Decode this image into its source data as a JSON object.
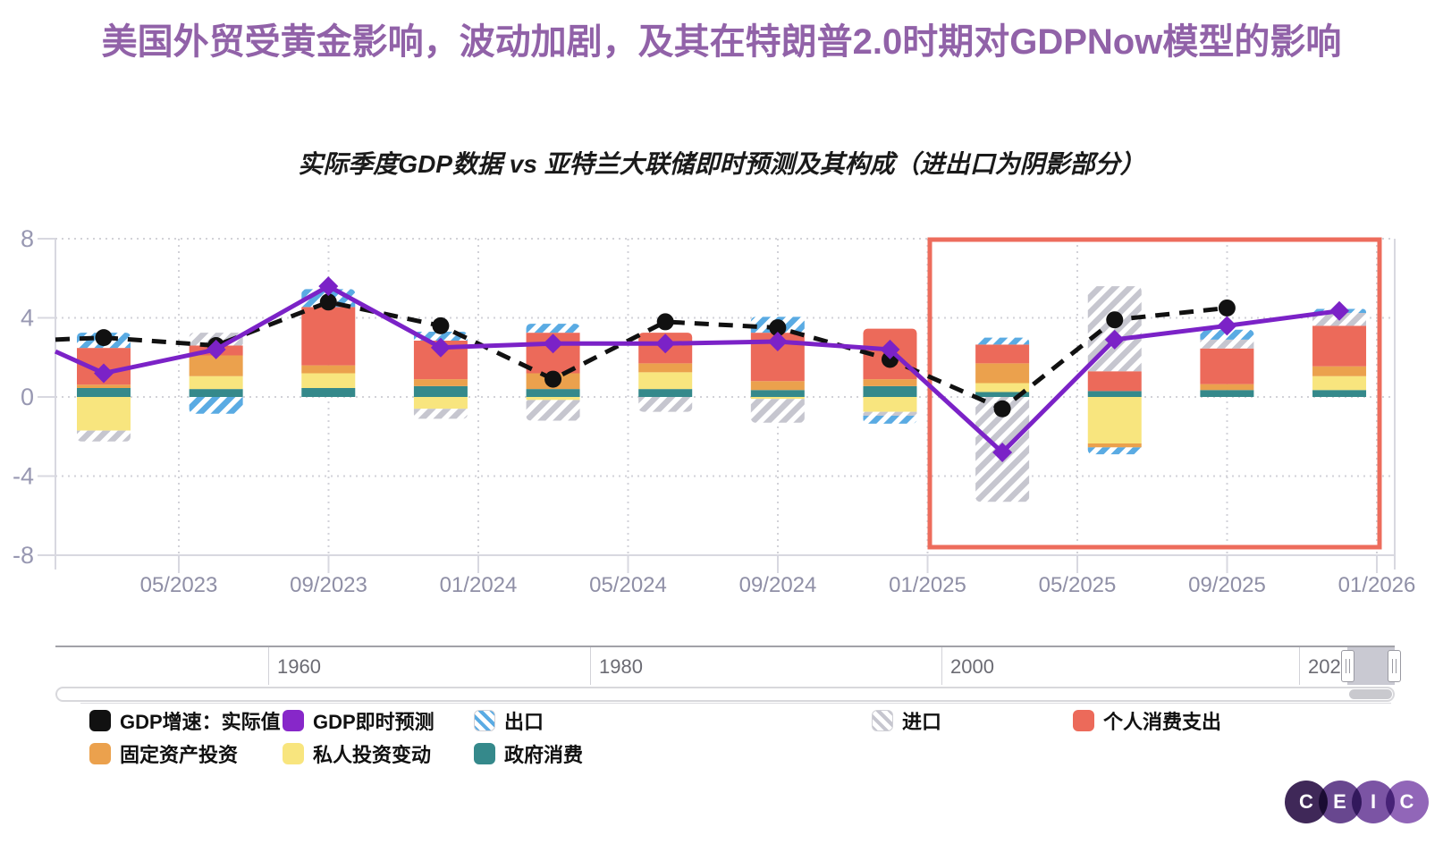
{
  "title": "美国外贸受黄金影响，波动加剧，及其在特朗普2.0时期对GDPNow模型的影响",
  "subtitle": "实际季度GDP数据 vs 亚特兰大联储即时预测及其构成（进出口为阴影部分）",
  "chart_data": {
    "type": "combo: stacked-bar + line",
    "y_axis": {
      "min": -8,
      "max": 8,
      "ticks": [
        8,
        4,
        0,
        -4,
        -8
      ],
      "grid": "dotted"
    },
    "x_ticks": [
      "05/2023",
      "09/2023",
      "01/2024",
      "05/2024",
      "09/2024",
      "01/2025",
      "05/2025",
      "09/2025",
      "01/2026"
    ],
    "quarters": [
      "03/2023",
      "06/2023",
      "09/2023",
      "12/2023",
      "03/2024",
      "06/2024",
      "09/2024",
      "12/2024",
      "03/2025",
      "06/2025",
      "09/2025",
      "12/2025"
    ],
    "series": [
      {
        "key": "actual-gdp",
        "name": "GDP增速：实际值",
        "kind": "dashed-line",
        "marker": "dot",
        "color": "#111111",
        "left_edge_value": 2.9,
        "values": [
          3.0,
          2.6,
          4.8,
          3.6,
          0.9,
          3.8,
          3.5,
          1.9,
          -0.6,
          3.9,
          4.5,
          null
        ]
      },
      {
        "key": "gdp-nowcast",
        "name": "GDP即时预测",
        "kind": "line",
        "marker": "diamond",
        "color": "#7B22C7",
        "left_edge_value": 2.3,
        "values": [
          1.2,
          2.4,
          5.6,
          2.5,
          2.7,
          2.7,
          2.8,
          2.4,
          -2.8,
          2.9,
          3.6,
          4.35
        ]
      }
    ],
    "components": [
      {
        "key": "government-consumption",
        "name": "政府消费",
        "color": "#35898B",
        "values": [
          0.45,
          0.4,
          0.45,
          0.55,
          0.4,
          0.4,
          0.35,
          0.55,
          0.25,
          0.3,
          0.35,
          0.35
        ]
      },
      {
        "key": "private-inventory-change",
        "name": "私人投资变动",
        "color": "#F8E57E",
        "values": [
          -1.7,
          0.65,
          0.75,
          -0.6,
          -0.15,
          0.85,
          -0.1,
          -0.75,
          0.45,
          -2.35,
          0,
          0.7
        ]
      },
      {
        "key": "fixed-investment",
        "name": "固定资产投资",
        "color": "#EBA14D",
        "values": [
          0.17,
          1.05,
          0.4,
          0.35,
          0.8,
          0.45,
          0.45,
          0.35,
          1.0,
          -0.2,
          0.3,
          0.5
        ]
      },
      {
        "key": "personal-consumption",
        "name": "个人消费支出",
        "color": "#EC6A5A",
        "values": [
          1.86,
          0.5,
          2.95,
          1.95,
          2.05,
          1.55,
          2.45,
          2.55,
          0.95,
          1.0,
          1.8,
          2.05
        ]
      },
      {
        "key": "imports",
        "name": "进口",
        "pattern": "hatch",
        "color": "#C6C6CF",
        "values": [
          -0.55,
          0.65,
          0,
          -0.5,
          -1.05,
          -0.75,
          -1.2,
          -0.2,
          -5.3,
          4.3,
          0.45,
          0.65
        ]
      },
      {
        "key": "exports",
        "name": "出口",
        "pattern": "hatch",
        "color": "#5AABE3",
        "values": [
          0.77,
          -0.85,
          0.9,
          0.45,
          0.45,
          0,
          0.8,
          -0.4,
          0.35,
          -0.35,
          0.5,
          0.2
        ]
      }
    ],
    "highlight_box": {
      "color": "#ED6C5C",
      "from": "01/2025 区域",
      "to": "01/2026"
    }
  },
  "navigator": {
    "decade_labels": [
      "1960",
      "1980",
      "2000",
      "2020"
    ],
    "selection": "2020s (right end)"
  },
  "legend": {
    "rows": [
      {
        "items": [
          {
            "label": "GDP增速：实际值",
            "swatch": "#111111"
          },
          {
            "label": "GDP即时预测",
            "swatch": "#8727C9"
          },
          {
            "label": "出口",
            "swatch": "#5AABE3",
            "pattern": "hatch"
          },
          {
            "label": "进口",
            "swatch": "#C6C6CF",
            "pattern": "hatch"
          },
          {
            "label": "个人消费支出",
            "swatch": "#EC6A5A"
          }
        ]
      },
      {
        "items": [
          {
            "label": "固定资产投资",
            "swatch": "#EBA14D"
          },
          {
            "label": "私人投资变动",
            "swatch": "#F8E57E"
          },
          {
            "label": "政府消费",
            "swatch": "#35898B"
          }
        ]
      }
    ]
  },
  "logo": {
    "letters": [
      "C",
      "E",
      "I",
      "C"
    ],
    "colors": [
      "#3F2858",
      "#68478F",
      "#7B54A4",
      "#9166B8"
    ]
  }
}
